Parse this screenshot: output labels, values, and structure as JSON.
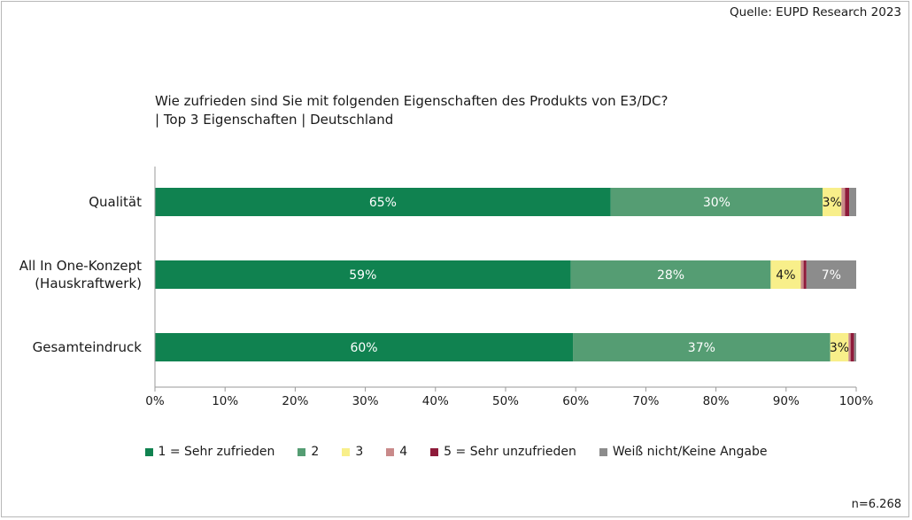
{
  "source": "Quelle: EUPD Research 2023",
  "title_line1": "Wie zufrieden sind Sie mit folgenden Eigenschaften des Produkts von E3/DC?",
  "title_line2": "| Top 3 Eigenschaften | Deutschland",
  "sample_size": "n=6.268",
  "colors": {
    "sehr_zufrieden": "#108250",
    "2": "#559d73",
    "3": "#f8ef8a",
    "4": "#c98a8a",
    "sehr_unzufrieden": "#8e1b3a",
    "keine_angabe": "#8c8c8c",
    "axis": "#9a9a9a"
  },
  "chart_data": {
    "type": "bar",
    "orientation": "horizontal",
    "stacked": "percent",
    "categories": [
      "Qualität",
      "All In One-Konzept\n(Hauskraftwerk)",
      "Gesamteindruck"
    ],
    "series": [
      {
        "name": "1 = Sehr zufrieden",
        "values": [
          65,
          59.3,
          59.6
        ],
        "labels": [
          "65%",
          "59%",
          "60%"
        ]
      },
      {
        "name": "2",
        "values": [
          30.2,
          28.5,
          36.7
        ],
        "labels": [
          "30%",
          "28%",
          "37%"
        ]
      },
      {
        "name": "3",
        "values": [
          2.7,
          4.3,
          2.6
        ],
        "labels": [
          "3%",
          "4%",
          "3%"
        ]
      },
      {
        "name": "4",
        "values": [
          0.5,
          0.4,
          0.3
        ],
        "labels": [
          "",
          "",
          ""
        ]
      },
      {
        "name": "5 = Sehr unzufrieden",
        "values": [
          0.6,
          0.4,
          0.5
        ],
        "labels": [
          "",
          "",
          ""
        ]
      },
      {
        "name": "Weiß nicht/Keine Angabe",
        "values": [
          1.0,
          7.1,
          0.3
        ],
        "labels": [
          "",
          "7%",
          ""
        ]
      }
    ],
    "xticks": [
      "0%",
      "10%",
      "20%",
      "30%",
      "40%",
      "50%",
      "60%",
      "70%",
      "80%",
      "90%",
      "100%"
    ],
    "xlim": [
      0,
      100
    ],
    "legend_position": "bottom"
  }
}
